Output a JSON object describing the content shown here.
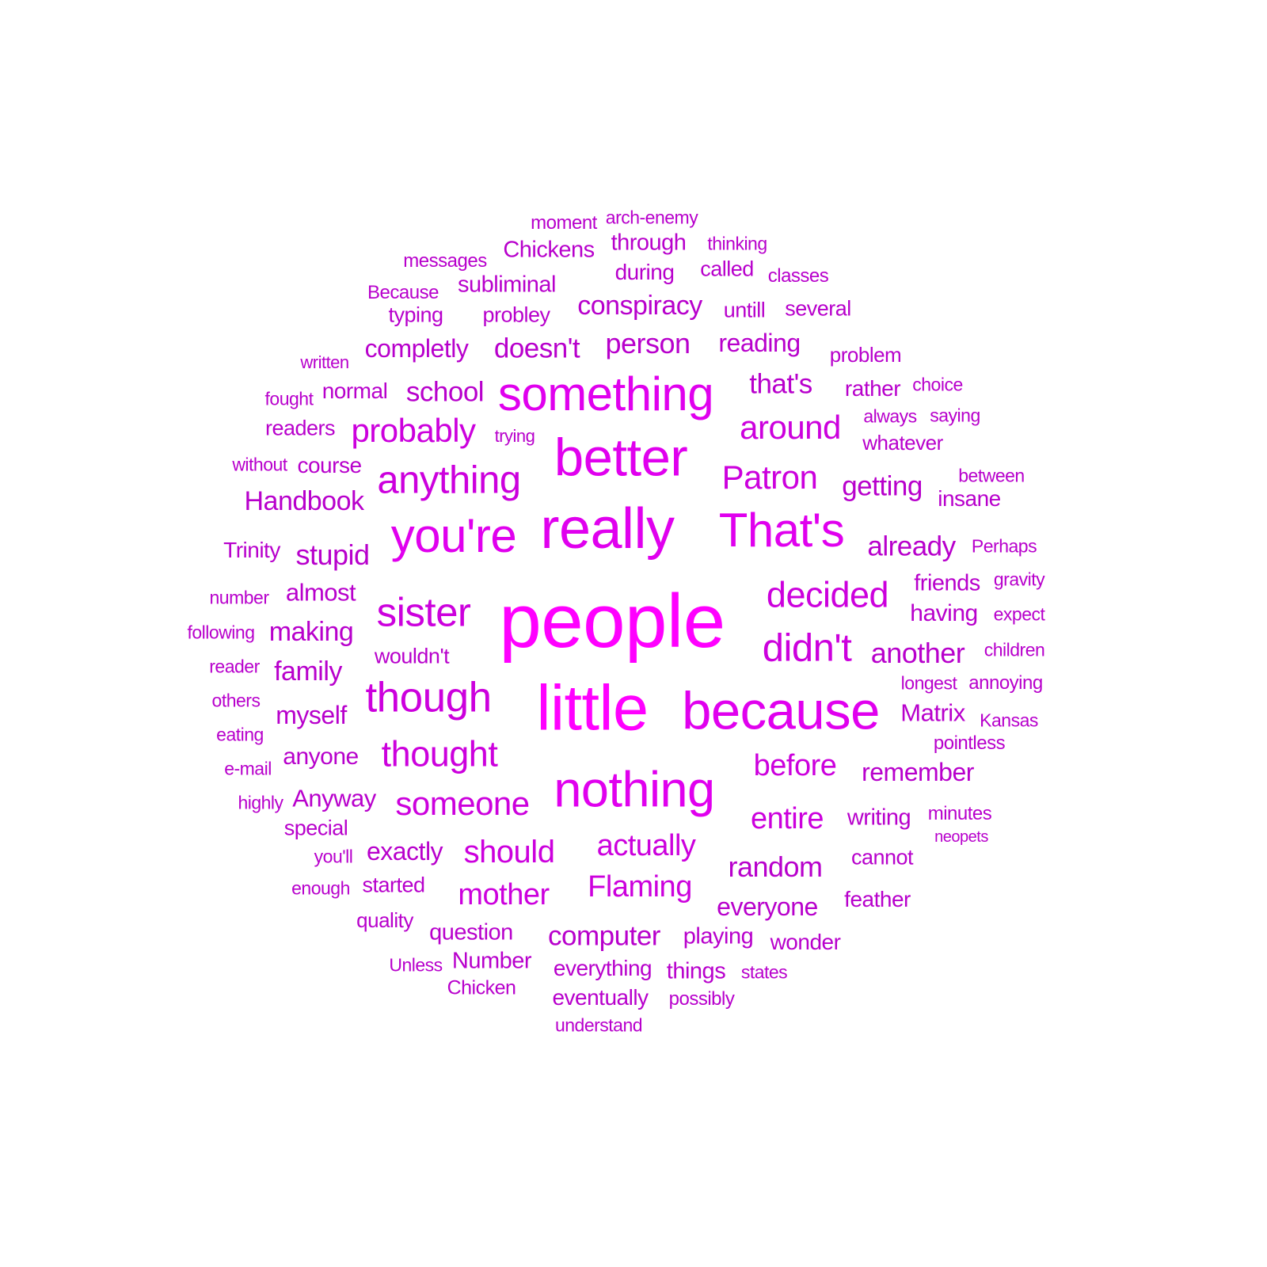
{
  "colors": {
    "background": "#ffffff",
    "word_scale": [
      "#a000b8",
      "#b800cc",
      "#cc00dd",
      "#e000ee",
      "#ff00ff"
    ]
  },
  "words": [
    {
      "text": "people",
      "weight": 1.0
    },
    {
      "text": "little",
      "weight": 0.84
    },
    {
      "text": "really",
      "weight": 0.75
    },
    {
      "text": "because",
      "weight": 0.7
    },
    {
      "text": "better",
      "weight": 0.7
    },
    {
      "text": "nothing",
      "weight": 0.66
    },
    {
      "text": "you're",
      "weight": 0.62
    },
    {
      "text": "That's",
      "weight": 0.62
    },
    {
      "text": "something",
      "weight": 0.62
    },
    {
      "text": "though",
      "weight": 0.55
    },
    {
      "text": "sister",
      "weight": 0.53
    },
    {
      "text": "didn't",
      "weight": 0.51
    },
    {
      "text": "anything",
      "weight": 0.51
    },
    {
      "text": "decided",
      "weight": 0.47
    },
    {
      "text": "thought",
      "weight": 0.47
    },
    {
      "text": "someone",
      "weight": 0.44
    },
    {
      "text": "around",
      "weight": 0.44
    },
    {
      "text": "Patron",
      "weight": 0.44
    },
    {
      "text": "probably",
      "weight": 0.44
    },
    {
      "text": "should",
      "weight": 0.42
    },
    {
      "text": "actually",
      "weight": 0.4
    },
    {
      "text": "Flaming",
      "weight": 0.4
    },
    {
      "text": "before",
      "weight": 0.4
    },
    {
      "text": "entire",
      "weight": 0.4
    },
    {
      "text": "mother",
      "weight": 0.4
    },
    {
      "text": "random",
      "weight": 0.38
    },
    {
      "text": "stupid",
      "weight": 0.38
    },
    {
      "text": "person",
      "weight": 0.38
    },
    {
      "text": "another",
      "weight": 0.38
    },
    {
      "text": "computer",
      "weight": 0.36
    },
    {
      "text": "doesn't",
      "weight": 0.36
    },
    {
      "text": "school",
      "weight": 0.36
    },
    {
      "text": "that's",
      "weight": 0.36
    },
    {
      "text": "getting",
      "weight": 0.36
    },
    {
      "text": "already",
      "weight": 0.36
    },
    {
      "text": "conspiracy",
      "weight": 0.35
    },
    {
      "text": "family",
      "weight": 0.35
    },
    {
      "text": "Handbook",
      "weight": 0.35
    },
    {
      "text": "making",
      "weight": 0.35
    },
    {
      "text": "exactly",
      "weight": 0.33
    },
    {
      "text": "everyone",
      "weight": 0.33
    },
    {
      "text": "myself",
      "weight": 0.33
    },
    {
      "text": "completly",
      "weight": 0.33
    },
    {
      "text": "reading",
      "weight": 0.33
    },
    {
      "text": "remember",
      "weight": 0.33
    },
    {
      "text": "Anyway",
      "weight": 0.32
    },
    {
      "text": "almost",
      "weight": 0.32
    },
    {
      "text": "Matrix",
      "weight": 0.32
    },
    {
      "text": "anyone",
      "weight": 0.31
    },
    {
      "text": "having",
      "weight": 0.31
    },
    {
      "text": "writing",
      "weight": 0.3
    },
    {
      "text": "things",
      "weight": 0.3
    },
    {
      "text": "Chickens",
      "weight": 0.3
    },
    {
      "text": "through",
      "weight": 0.3
    },
    {
      "text": "playing",
      "weight": 0.3
    },
    {
      "text": "subliminal",
      "weight": 0.3
    },
    {
      "text": "question",
      "weight": 0.3
    },
    {
      "text": "friends",
      "weight": 0.3
    },
    {
      "text": "Number",
      "weight": 0.3
    },
    {
      "text": "wonder",
      "weight": 0.29
    },
    {
      "text": "everything",
      "weight": 0.29
    },
    {
      "text": "during",
      "weight": 0.29
    },
    {
      "text": "Trinity",
      "weight": 0.29
    },
    {
      "text": "normal",
      "weight": 0.29
    },
    {
      "text": "course",
      "weight": 0.29
    },
    {
      "text": "rather",
      "weight": 0.29
    },
    {
      "text": "insane",
      "weight": 0.29
    },
    {
      "text": "eventually",
      "weight": 0.29
    },
    {
      "text": "feather",
      "weight": 0.29
    },
    {
      "text": "several",
      "weight": 0.28
    },
    {
      "text": "untill",
      "weight": 0.28
    },
    {
      "text": "wouldn't",
      "weight": 0.28
    },
    {
      "text": "called",
      "weight": 0.28
    },
    {
      "text": "typing",
      "weight": 0.28
    },
    {
      "text": "probley",
      "weight": 0.28
    },
    {
      "text": "readers",
      "weight": 0.28
    },
    {
      "text": "special",
      "weight": 0.28
    },
    {
      "text": "cannot",
      "weight": 0.28
    },
    {
      "text": "started",
      "weight": 0.28
    },
    {
      "text": "quality",
      "weight": 0.27
    },
    {
      "text": "whatever",
      "weight": 0.27
    },
    {
      "text": "problem",
      "weight": 0.27
    },
    {
      "text": "Chicken",
      "weight": 0.26
    },
    {
      "text": "messages",
      "weight": 0.25
    },
    {
      "text": "understand",
      "weight": 0.24
    },
    {
      "text": "possibly",
      "weight": 0.25
    },
    {
      "text": "minutes",
      "weight": 0.25
    },
    {
      "text": "annoying",
      "weight": 0.25
    },
    {
      "text": "pointless",
      "weight": 0.25
    },
    {
      "text": "children",
      "weight": 0.24
    },
    {
      "text": "arch-enemy",
      "weight": 0.24
    },
    {
      "text": "moment",
      "weight": 0.25
    },
    {
      "text": "thinking",
      "weight": 0.24
    },
    {
      "text": "classes",
      "weight": 0.25
    },
    {
      "text": "Because",
      "weight": 0.25
    },
    {
      "text": "written",
      "weight": 0.23
    },
    {
      "text": "fought",
      "weight": 0.24
    },
    {
      "text": "choice",
      "weight": 0.24
    },
    {
      "text": "always",
      "weight": 0.24
    },
    {
      "text": "saying",
      "weight": 0.24
    },
    {
      "text": "trying",
      "weight": 0.23
    },
    {
      "text": "without",
      "weight": 0.24
    },
    {
      "text": "between",
      "weight": 0.24
    },
    {
      "text": "Perhaps",
      "weight": 0.24
    },
    {
      "text": "gravity",
      "weight": 0.24
    },
    {
      "text": "number",
      "weight": 0.24
    },
    {
      "text": "expect",
      "weight": 0.24
    },
    {
      "text": "following",
      "weight": 0.24
    },
    {
      "text": "reader",
      "weight": 0.24
    },
    {
      "text": "longest",
      "weight": 0.24
    },
    {
      "text": "others",
      "weight": 0.24
    },
    {
      "text": "Kansas",
      "weight": 0.24
    },
    {
      "text": "eating",
      "weight": 0.24
    },
    {
      "text": "e-mail",
      "weight": 0.24
    },
    {
      "text": "highly",
      "weight": 0.24
    },
    {
      "text": "neopets",
      "weight": 0.21
    },
    {
      "text": "you'll",
      "weight": 0.24
    },
    {
      "text": "enough",
      "weight": 0.24
    },
    {
      "text": "Unless",
      "weight": 0.24
    },
    {
      "text": "states",
      "weight": 0.24
    }
  ]
}
